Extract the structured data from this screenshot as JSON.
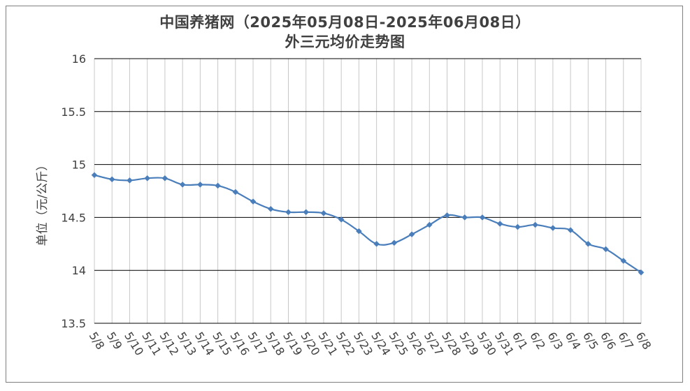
{
  "chart_data": {
    "type": "line",
    "title": "中国养猪网（2025年05月08日-2025年06月08日）",
    "subtitle": "外三元均价走势图",
    "xlabel": "",
    "ylabel": "单位（元/公斤）",
    "ylim": [
      13.5,
      16
    ],
    "yticks": [
      "13.5",
      "14",
      "14.5",
      "15",
      "15.5",
      "16"
    ],
    "grid": true,
    "legend": "none",
    "color": "#4a7ebb",
    "categories": [
      "5/8",
      "5/9",
      "5/10",
      "5/11",
      "5/12",
      "5/13",
      "5/14",
      "5/15",
      "5/16",
      "5/17",
      "5/18",
      "5/19",
      "5/20",
      "5/21",
      "5/22",
      "5/23",
      "5/24",
      "5/25",
      "5/26",
      "5/27",
      "5/28",
      "5/29",
      "5/30",
      "5/31",
      "6/1",
      "6/2",
      "6/3",
      "6/4",
      "6/5",
      "6/6",
      "6/7",
      "6/8"
    ],
    "values": [
      14.9,
      14.86,
      14.85,
      14.87,
      14.87,
      14.81,
      14.81,
      14.8,
      14.74,
      14.65,
      14.58,
      14.55,
      14.55,
      14.54,
      14.48,
      14.37,
      14.25,
      14.26,
      14.34,
      14.43,
      14.52,
      14.5,
      14.5,
      14.44,
      14.41,
      14.43,
      14.4,
      14.38,
      14.25,
      14.2,
      14.09,
      13.98
    ]
  }
}
